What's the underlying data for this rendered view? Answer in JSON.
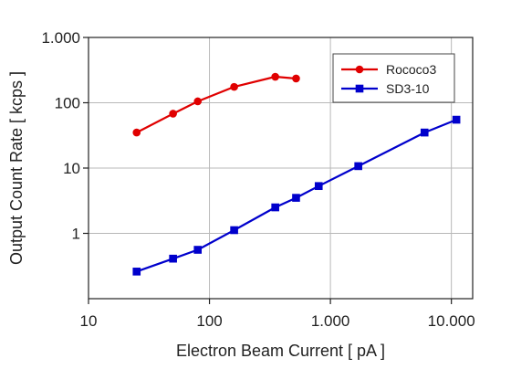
{
  "chart_data": {
    "type": "line",
    "title": "",
    "xlabel": "Electron Beam Current [ pA ]",
    "ylabel": "Output Count Rate [ kcps ]",
    "x_scale": "log",
    "y_scale": "log",
    "xlim": [
      10,
      15000
    ],
    "ylim": [
      0.1,
      1000
    ],
    "x_ticks": [
      {
        "value": 10,
        "label": "10"
      },
      {
        "value": 100,
        "label": "100"
      },
      {
        "value": 1000,
        "label": "1.000"
      },
      {
        "value": 10000,
        "label": "10.000"
      }
    ],
    "y_ticks": [
      {
        "value": 1,
        "label": "1"
      },
      {
        "value": 10,
        "label": "10"
      },
      {
        "value": 100,
        "label": "100"
      },
      {
        "value": 1000,
        "label": "1.000"
      }
    ],
    "grid": true,
    "legend_position": "top-right",
    "series": [
      {
        "name": "Rococo3",
        "color": "#e00000",
        "marker": "circle",
        "x": [
          25,
          50,
          80,
          160,
          350,
          520
        ],
        "y": [
          35,
          68,
          105,
          175,
          250,
          235
        ]
      },
      {
        "name": "SD3-10",
        "color": "#0000cc",
        "marker": "square",
        "x": [
          25,
          50,
          80,
          160,
          350,
          520,
          800,
          1700,
          6000,
          11000
        ],
        "y": [
          0.26,
          0.41,
          0.56,
          1.12,
          2.5,
          3.5,
          5.3,
          10.7,
          35,
          55
        ]
      }
    ]
  }
}
